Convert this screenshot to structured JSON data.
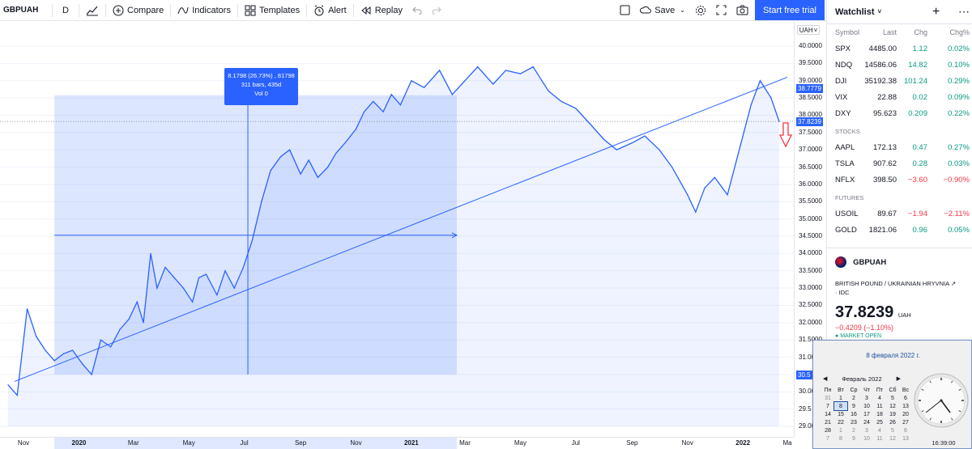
{
  "toolbar": {
    "symbol": "GBPUAH",
    "interval": "D",
    "compare": "Compare",
    "indicators": "Indicators",
    "templates": "Templates",
    "alert": "Alert",
    "replay": "Replay",
    "save": "Save",
    "start_trial": "Start free trial"
  },
  "chart": {
    "currency_button": "UAH",
    "price_ticks": [
      "40.0000",
      "39.5000",
      "39.0000",
      "38.5000",
      "38.0000",
      "37.5000",
      "37.0000",
      "36.5000",
      "36.0000",
      "35.5000",
      "35.0000",
      "34.5000",
      "34.0000",
      "33.5000",
      "33.0000",
      "32.5000",
      "32.0000",
      "31.5000",
      "31.0000",
      "30.5",
      "30.0000",
      "29.5",
      "29.0000"
    ],
    "price_tag_upper": "38.7779",
    "price_tag_current": "37.8239",
    "price_tag_lower": "30.5",
    "time_ticks": [
      "Nov",
      "2020",
      "Mar",
      "May",
      "Jul",
      "Sep",
      "Nov",
      "2021",
      "Mar",
      "May",
      "Jul",
      "Sep",
      "Nov",
      "2022",
      "Ma"
    ],
    "time_tick_bold": [
      false,
      true,
      false,
      false,
      false,
      false,
      false,
      true,
      false,
      false,
      false,
      false,
      false,
      true,
      false
    ],
    "measure": {
      "line1": "8.1798 (26.73%) , 81798",
      "line2": "311 bars, 435d",
      "line3": "Vol 0"
    },
    "logo": "TV",
    "accent": "#2962ff"
  },
  "chart_data": {
    "type": "line",
    "title": "",
    "xlabel": "",
    "ylabel": "",
    "ylim": [
      29.0,
      40.0
    ],
    "x_range": [
      "2019-10-15",
      "2022-02-10"
    ],
    "series": [
      {
        "x": [
          "2019-10-15",
          "2019-10-25",
          "2019-11-05",
          "2019-11-15",
          "2019-11-25",
          "2019-12-05",
          "2019-12-15",
          "2019-12-25",
          "2020-01-05",
          "2020-01-15",
          "2020-01-25",
          "2020-02-05",
          "2020-02-15",
          "2020-02-25",
          "2020-03-05",
          "2020-03-12",
          "2020-03-20",
          "2020-03-27",
          "2020-04-05",
          "2020-04-15",
          "2020-04-25",
          "2020-05-05",
          "2020-05-12",
          "2020-05-20",
          "2020-06-01",
          "2020-06-10",
          "2020-06-20",
          "2020-06-30",
          "2020-07-10",
          "2020-07-20",
          "2020-07-30",
          "2020-08-10",
          "2020-08-20",
          "2020-09-01",
          "2020-09-10",
          "2020-09-20",
          "2020-10-01",
          "2020-10-10",
          "2020-10-20",
          "2020-11-01",
          "2020-11-10",
          "2020-11-20",
          "2020-12-01",
          "2020-12-10",
          "2020-12-20",
          "2021-01-01",
          "2021-01-15",
          "2021-02-01",
          "2021-02-15",
          "2021-03-01",
          "2021-03-15",
          "2021-04-01",
          "2021-04-15",
          "2021-05-01",
          "2021-05-15",
          "2021-06-01",
          "2021-06-15",
          "2021-07-01",
          "2021-07-15",
          "2021-08-01",
          "2021-08-15",
          "2021-09-01",
          "2021-09-15",
          "2021-10-01",
          "2021-10-15",
          "2021-11-01",
          "2021-11-10",
          "2021-11-20",
          "2021-12-01",
          "2021-12-15",
          "2022-01-01",
          "2022-01-10",
          "2022-01-20",
          "2022-02-01",
          "2022-02-10"
        ],
        "values": [
          30.2,
          29.9,
          32.4,
          31.6,
          31.2,
          30.9,
          31.1,
          31.2,
          30.8,
          30.5,
          31.5,
          31.3,
          31.8,
          32.1,
          32.6,
          32.0,
          34.0,
          33.0,
          33.6,
          33.3,
          33.0,
          32.6,
          33.3,
          33.4,
          32.8,
          33.5,
          33.0,
          33.6,
          34.4,
          35.5,
          36.4,
          36.8,
          37.0,
          36.3,
          36.7,
          36.2,
          36.5,
          36.9,
          37.2,
          37.6,
          38.1,
          38.4,
          38.1,
          38.6,
          38.3,
          39.0,
          38.8,
          39.3,
          38.6,
          39.0,
          39.4,
          38.9,
          39.3,
          39.2,
          39.4,
          38.7,
          38.4,
          38.2,
          37.8,
          37.3,
          37.0,
          37.2,
          37.4,
          37.0,
          36.5,
          35.7,
          35.2,
          35.9,
          36.2,
          35.7,
          37.4,
          38.3,
          39.0,
          38.5,
          37.82
        ]
      }
    ]
  },
  "watchlist": {
    "title": "Watchlist",
    "columns": {
      "symbol": "Symbol",
      "last": "Last",
      "chg": "Chg",
      "chg_pct": "Chg%"
    },
    "rows": [
      {
        "symbol": "SPX",
        "last": "4485.00",
        "chg": "1.12",
        "pct": "0.02%",
        "dir": "up"
      },
      {
        "symbol": "NDQ",
        "last": "14586.06",
        "chg": "14.82",
        "pct": "0.10%",
        "dir": "up"
      },
      {
        "symbol": "DJI",
        "last": "35192.38",
        "chg": "101.24",
        "pct": "0.29%",
        "dir": "up"
      },
      {
        "symbol": "VIX",
        "last": "22.88",
        "chg": "0.02",
        "pct": "0.09%",
        "dir": "up"
      },
      {
        "symbol": "DXY",
        "last": "95.623",
        "chg": "0.209",
        "pct": "0.22%",
        "dir": "up"
      }
    ],
    "stocks_label": "STOCKS",
    "stocks": [
      {
        "symbol": "AAPL",
        "last": "172.13",
        "chg": "0.47",
        "pct": "0.27%",
        "dir": "up"
      },
      {
        "symbol": "TSLA",
        "last": "907.62",
        "chg": "0.28",
        "pct": "0.03%",
        "dir": "up"
      },
      {
        "symbol": "NFLX",
        "last": "398.50",
        "chg": "−3.60",
        "pct": "−0.90%",
        "dir": "down"
      }
    ],
    "futures_label": "FUTURES",
    "futures": [
      {
        "symbol": "USOIL",
        "last": "89.67",
        "chg": "−1.94",
        "pct": "−2.11%",
        "dir": "down"
      },
      {
        "symbol": "GOLD",
        "last": "1821.06",
        "chg": "0.96",
        "pct": "0.05%",
        "dir": "up"
      }
    ]
  },
  "details": {
    "symbol": "GBPUAH",
    "name": "BRITISH POUND / UKRAINIAN HRYVNIA",
    "source": "· IDC",
    "price": "37.8239",
    "currency": "UAH",
    "change": "−0.4209 (−1.10%)",
    "market": "MARKET OPEN"
  },
  "calendar": {
    "date_header": "8 февраля 2022 г.",
    "month": "Февраль 2022",
    "weekdays": [
      "Пн",
      "Вт",
      "Ср",
      "Чт",
      "Пт",
      "Сб",
      "Вс"
    ],
    "weeks": [
      [
        "31",
        "1",
        "2",
        "3",
        "4",
        "5",
        "6"
      ],
      [
        "7",
        "8",
        "9",
        "10",
        "11",
        "12",
        "13"
      ],
      [
        "14",
        "15",
        "16",
        "17",
        "18",
        "19",
        "20"
      ],
      [
        "21",
        "22",
        "23",
        "24",
        "25",
        "26",
        "27"
      ],
      [
        "28",
        "1",
        "2",
        "3",
        "4",
        "5",
        "6"
      ],
      [
        "7",
        "8",
        "9",
        "10",
        "11",
        "12",
        "13"
      ]
    ],
    "selected": "8",
    "clock_time": "16:39:00"
  },
  "colors": {
    "line": "#2962ff",
    "fill": "#cfdcfb",
    "up": "#089981",
    "down": "#f23645"
  }
}
